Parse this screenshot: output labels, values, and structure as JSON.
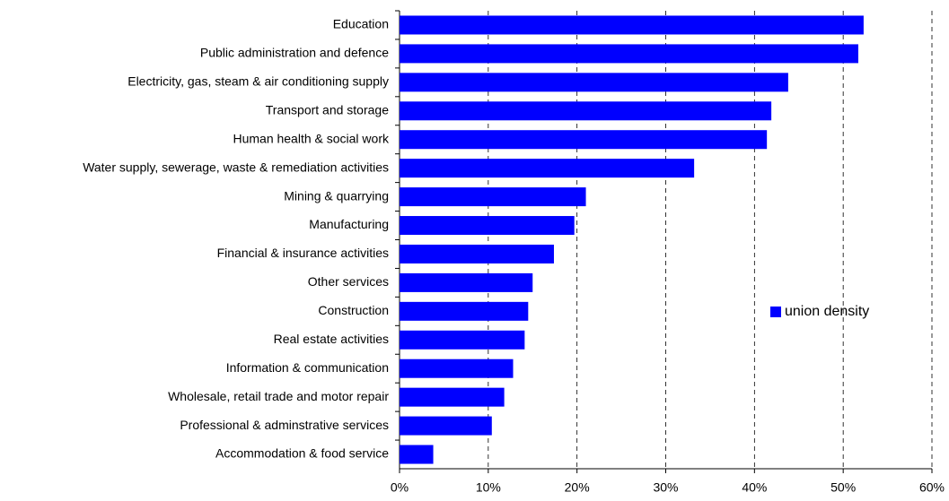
{
  "chart_data": {
    "type": "bar",
    "orientation": "horizontal",
    "categories": [
      "Education",
      "Public administration and defence",
      "Electricity, gas, steam & air conditioning supply",
      "Transport and storage",
      "Human health & social work",
      "Water supply, sewerage, waste & remediation activities",
      "Mining & quarrying",
      "Manufacturing",
      "Financial & insurance activities",
      "Other services",
      "Construction",
      "Real estate activities",
      "Information & communication",
      "Wholesale, retail trade and motor repair",
      "Professional & adminstrative services",
      "Accommodation & food service"
    ],
    "series": [
      {
        "name": "union density",
        "color": "#0000ff",
        "values": [
          52.3,
          51.7,
          43.8,
          41.9,
          41.4,
          33.2,
          21.0,
          19.7,
          17.4,
          15.0,
          14.5,
          14.1,
          12.8,
          11.8,
          10.4,
          3.8
        ]
      }
    ],
    "xlim": [
      0,
      60
    ],
    "xticks": [
      {
        "value": 0,
        "label": "0%"
      },
      {
        "value": 10,
        "label": "10%"
      },
      {
        "value": 20,
        "label": "20%"
      },
      {
        "value": 30,
        "label": "30%"
      },
      {
        "value": 40,
        "label": "40%"
      },
      {
        "value": 50,
        "label": "50%"
      },
      {
        "value": 60,
        "label": "60%"
      }
    ],
    "grid": true,
    "legend": "right"
  }
}
